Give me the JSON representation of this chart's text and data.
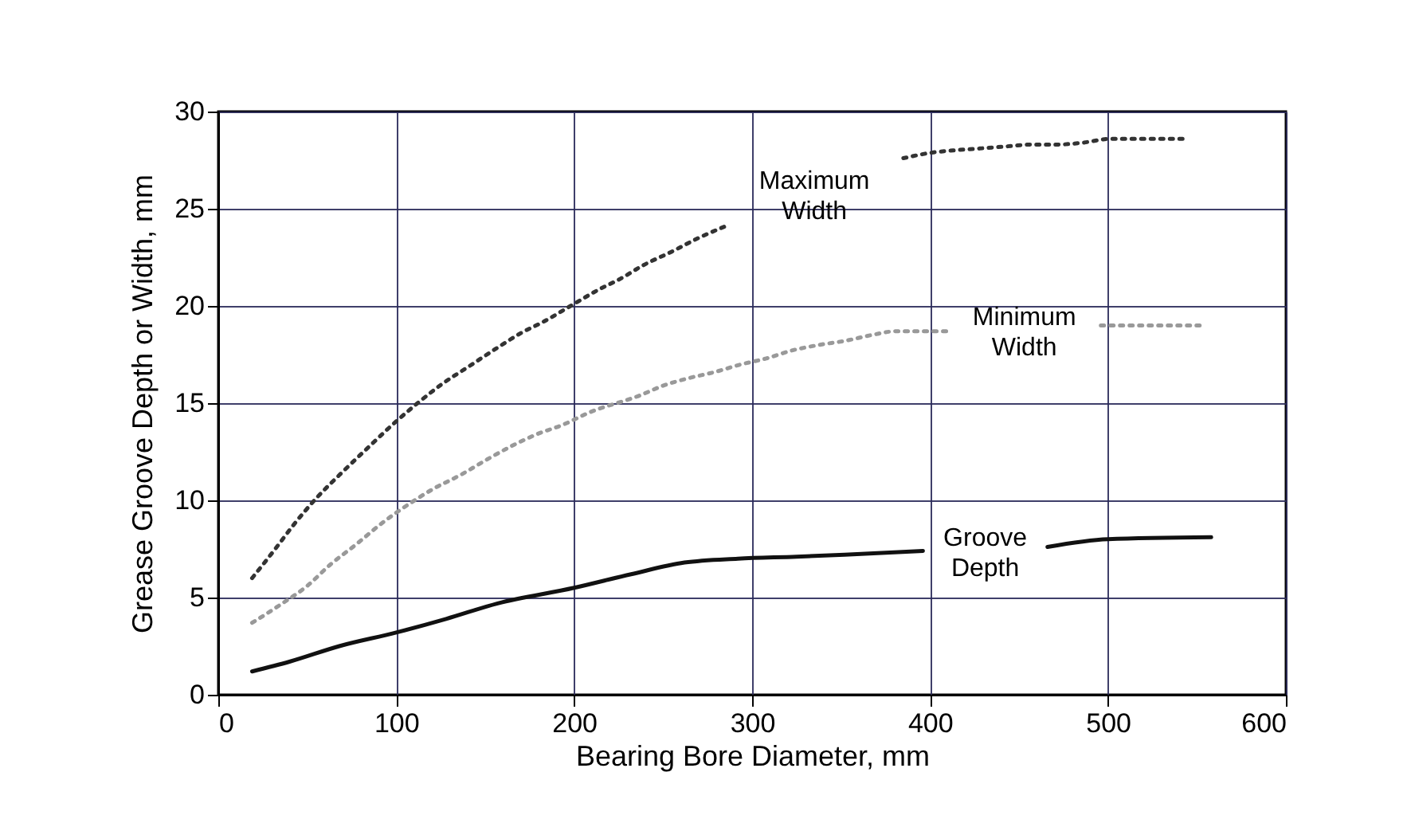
{
  "chart_data": {
    "type": "line",
    "xlabel": "Bearing Bore Diameter, mm",
    "ylabel": "Grease Groove Depth or Width, mm",
    "xlim": [
      0,
      600
    ],
    "xticks": [
      0,
      100,
      200,
      300,
      400,
      500,
      600
    ],
    "ylim": [
      0,
      30
    ],
    "yticks": [
      0,
      5,
      10,
      15,
      20,
      25,
      30
    ],
    "grid": true,
    "legend": false,
    "series": [
      {
        "name": "Maximum\nWidth",
        "color": "#333333",
        "line_style": "dotted",
        "x": [
          19,
          32,
          42,
          56,
          68,
          84,
          98,
          112,
          126,
          141,
          156,
          170,
          183,
          198,
          213,
          226,
          239,
          255,
          270,
          285,
          335,
          385,
          402,
          413,
          428,
          442,
          457,
          471,
          486,
          502,
          515,
          529,
          544
        ],
        "values": [
          6.0,
          7.5,
          8.7,
          10.2,
          11.3,
          12.7,
          13.9,
          15.0,
          16.0,
          16.9,
          17.8,
          18.6,
          19.2,
          20.0,
          20.8,
          21.4,
          22.1,
          22.8,
          23.5,
          24.1,
          null,
          27.6,
          27.9,
          28.0,
          28.1,
          28.2,
          28.3,
          28.3,
          28.4,
          28.6,
          28.6,
          28.6,
          28.6
        ]
      },
      {
        "name": "Minimum\nWidth",
        "color": "#999999",
        "line_style": "dotted",
        "x": [
          19,
          36,
          50,
          63,
          77,
          93,
          107,
          121,
          136,
          151,
          165,
          179,
          194,
          208,
          237,
          250,
          265,
          279,
          294,
          308,
          322,
          338,
          352,
          367,
          381,
          396,
          410,
          453,
          496,
          510,
          524,
          538,
          554
        ],
        "values": [
          3.7,
          4.7,
          5.6,
          6.7,
          7.7,
          8.9,
          9.8,
          10.6,
          11.3,
          12.1,
          12.8,
          13.4,
          13.9,
          14.5,
          15.4,
          15.9,
          16.3,
          16.6,
          17.0,
          17.3,
          17.7,
          18.0,
          18.2,
          18.5,
          18.7,
          18.7,
          18.7,
          null,
          19.0,
          19.0,
          19.0,
          19.0,
          19.0
        ]
      },
      {
        "name": "Groove\nDepth",
        "color": "#111111",
        "line_style": "solid",
        "x": [
          19,
          40,
          68,
          100,
          128,
          157,
          200,
          232,
          262,
          292,
          325,
          352,
          396,
          430,
          466,
          500,
          558
        ],
        "values": [
          1.2,
          1.7,
          2.5,
          3.2,
          3.9,
          4.7,
          5.5,
          6.2,
          6.8,
          7.0,
          7.1,
          7.2,
          7.4,
          null,
          7.6,
          8.0,
          8.1
        ]
      }
    ]
  }
}
